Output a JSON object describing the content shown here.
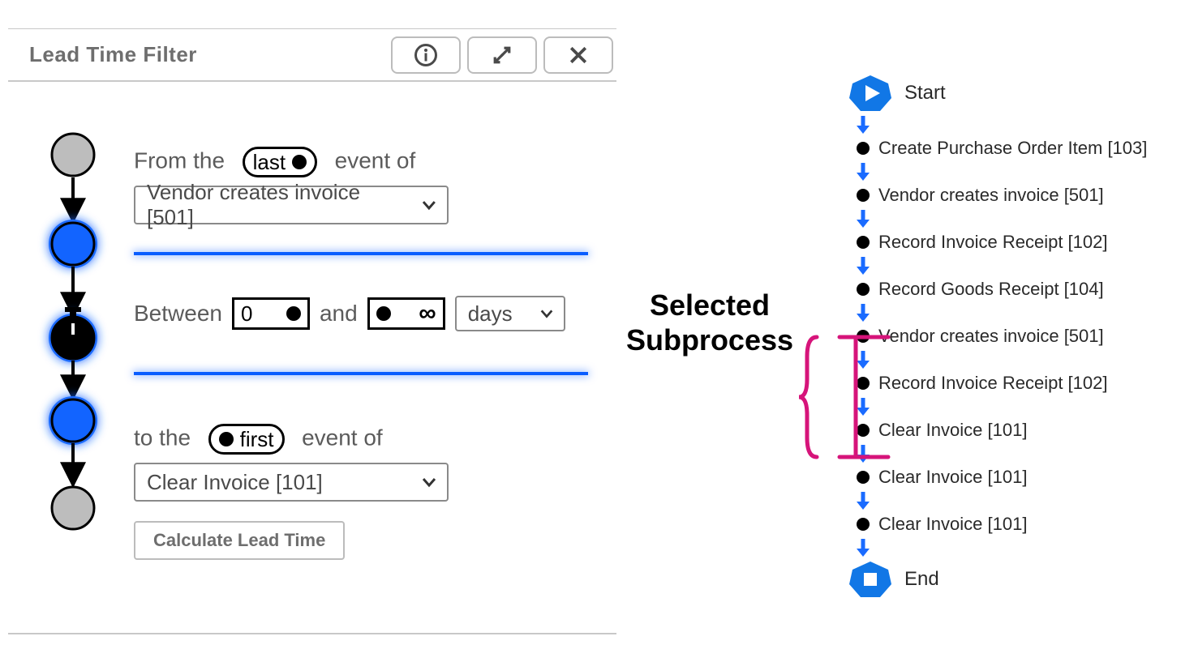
{
  "panel": {
    "title": "Lead Time Filter",
    "from_prefix": "From the",
    "from_suffix": "event of",
    "from_toggle": "last",
    "from_event": "Vendor creates invoice [501]",
    "between_label": "Between",
    "between_min": "0",
    "and_label": "and",
    "between_max": "∞",
    "unit": "days",
    "to_prefix": "to the",
    "to_toggle": "first",
    "to_suffix": "event of",
    "to_event": "Clear Invoice [101]",
    "calc_label": "Calculate Lead Time",
    "colors": {
      "accent": "#0a5dff",
      "node_blue": "#1264ff",
      "node_gray": "#bdbdbd",
      "glow": "#1a6bff",
      "border": "#bcbcbc",
      "text_muted": "#6e6e6e"
    }
  },
  "annotation": {
    "line1": "Selected",
    "line2": "Subprocess",
    "bracket_color": "#d6147a"
  },
  "flow": {
    "start_label": "Start",
    "end_label": "End",
    "arrow_color": "#1a6bff",
    "cap_color": "#1177e6",
    "steps": [
      "Create Purchase Order Item [103]",
      "Vendor creates invoice [501]",
      "Record Invoice Receipt [102]",
      "Record Goods Receipt [104]",
      "Vendor creates invoice [501]",
      "Record Invoice Receipt [102]",
      "Clear Invoice [101]",
      "Clear Invoice [101]",
      "Clear Invoice [101]"
    ],
    "selected": {
      "start_index": 4,
      "end_index": 6
    }
  }
}
